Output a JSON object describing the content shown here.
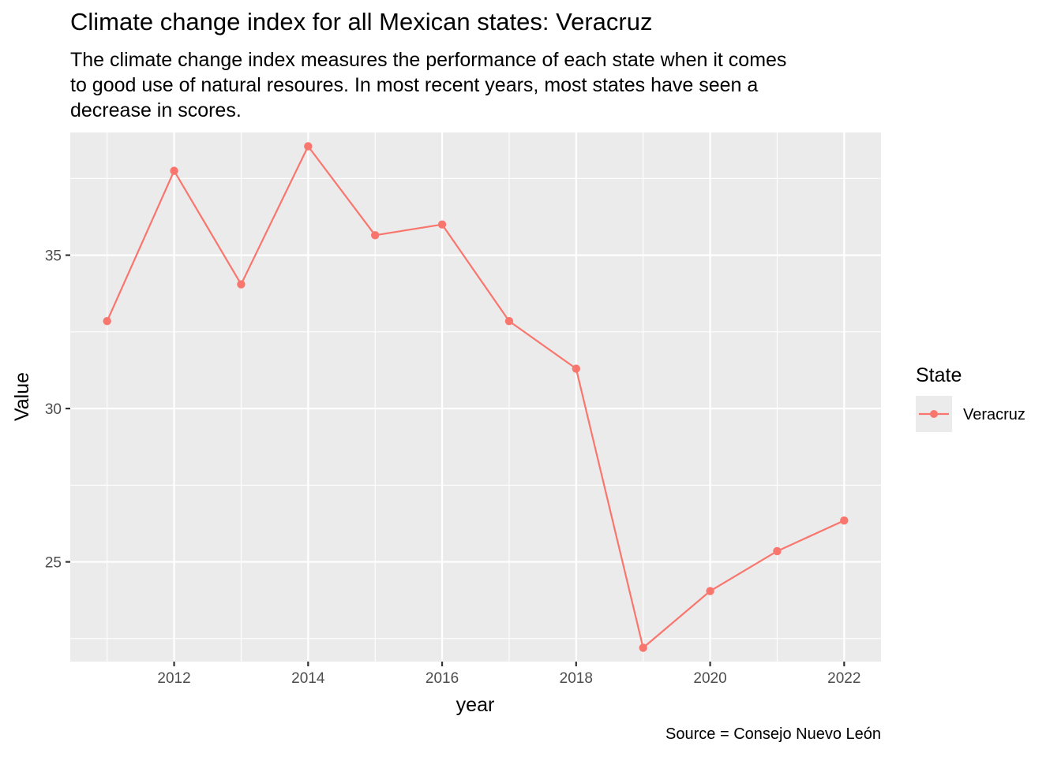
{
  "chart_data": {
    "type": "line",
    "title": "Climate change index for all Mexican states: Veracruz",
    "subtitle": [
      "The climate change index measures the performance of each state when it comes",
      "to good use of natural resoures. In most recent years, most states have seen a",
      "decrease in scores."
    ],
    "caption": "Source = Consejo Nuevo León",
    "xlabel": "year",
    "ylabel": "Value",
    "x": [
      2011,
      2012,
      2013,
      2014,
      2015,
      2016,
      2017,
      2018,
      2019,
      2020,
      2021,
      2022
    ],
    "series": [
      {
        "name": "Veracruz",
        "color": "#F8766D",
        "values": [
          32.85,
          37.75,
          34.05,
          38.55,
          35.65,
          36.0,
          32.85,
          31.3,
          22.2,
          24.05,
          25.35,
          26.35
        ]
      }
    ],
    "xlim": [
      2010.45,
      2022.55
    ],
    "ylim": [
      21.75,
      39.0
    ],
    "x_ticks": [
      2012,
      2014,
      2016,
      2018,
      2020,
      2022
    ],
    "y_ticks": [
      25,
      30,
      35
    ],
    "grid": true,
    "panel_background": "#EBEBEB",
    "legend": {
      "title": "State",
      "position": "right"
    }
  }
}
